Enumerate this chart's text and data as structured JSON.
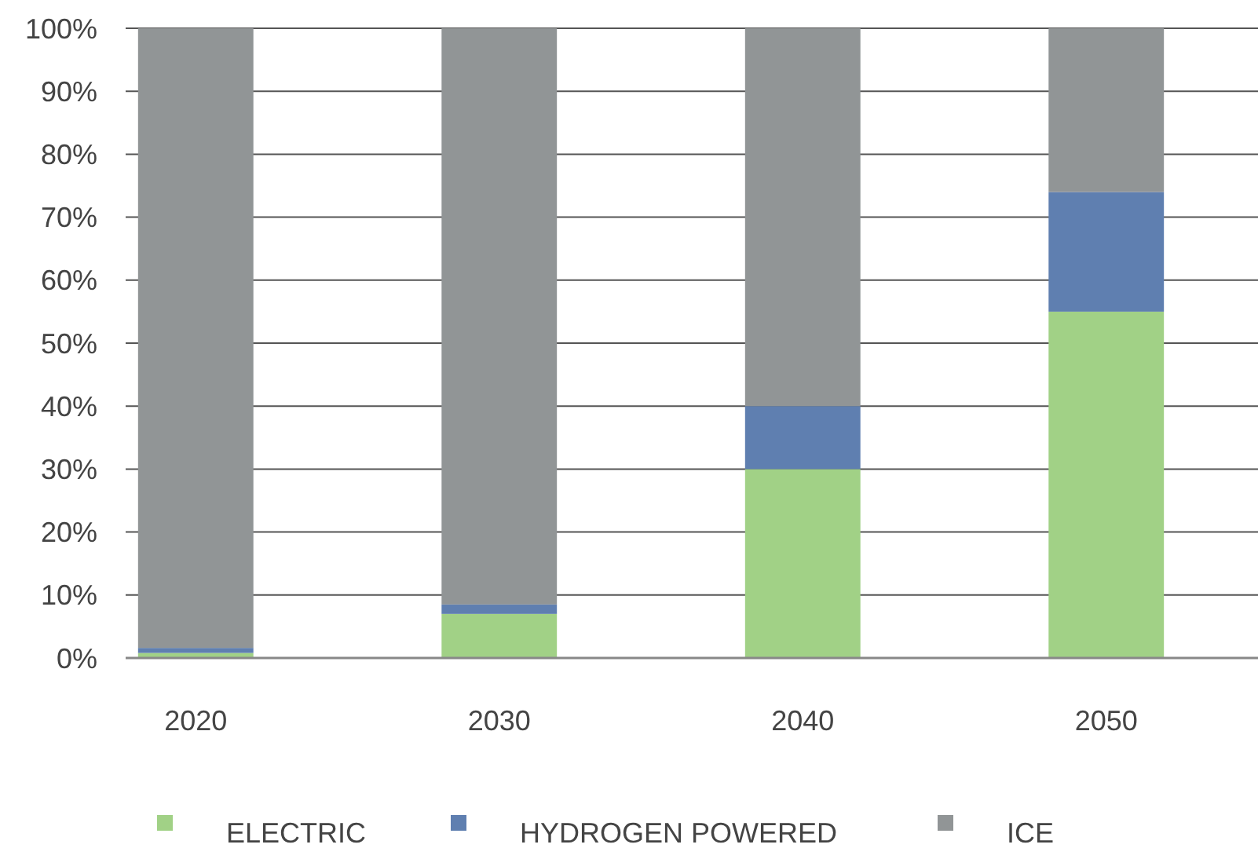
{
  "chart_data": {
    "type": "bar",
    "stacked": true,
    "categories": [
      "2020",
      "2030",
      "2040",
      "2050"
    ],
    "series": [
      {
        "name": "ELECTRIC",
        "color": "#a1d186",
        "values": [
          0.8,
          7,
          30,
          55
        ]
      },
      {
        "name": "HYDROGEN POWERED",
        "color": "#5f7fb0",
        "values": [
          0.8,
          1.5,
          10,
          19
        ]
      },
      {
        "name": "ICE",
        "color": "#919596",
        "values": [
          98.4,
          91.5,
          60,
          26
        ]
      }
    ],
    "ylim": [
      0,
      100
    ],
    "yticks": [
      {
        "value": 0,
        "label": "0%"
      },
      {
        "value": 10,
        "label": "10%"
      },
      {
        "value": 20,
        "label": "20%"
      },
      {
        "value": 30,
        "label": "30%"
      },
      {
        "value": 40,
        "label": "40%"
      },
      {
        "value": 50,
        "label": "50%"
      },
      {
        "value": 60,
        "label": "60%"
      },
      {
        "value": 70,
        "label": "70%"
      },
      {
        "value": 80,
        "label": "80%"
      },
      {
        "value": 90,
        "label": "90%"
      },
      {
        "value": 100,
        "label": "100%"
      }
    ],
    "grid": "y",
    "legend": "bottom"
  }
}
